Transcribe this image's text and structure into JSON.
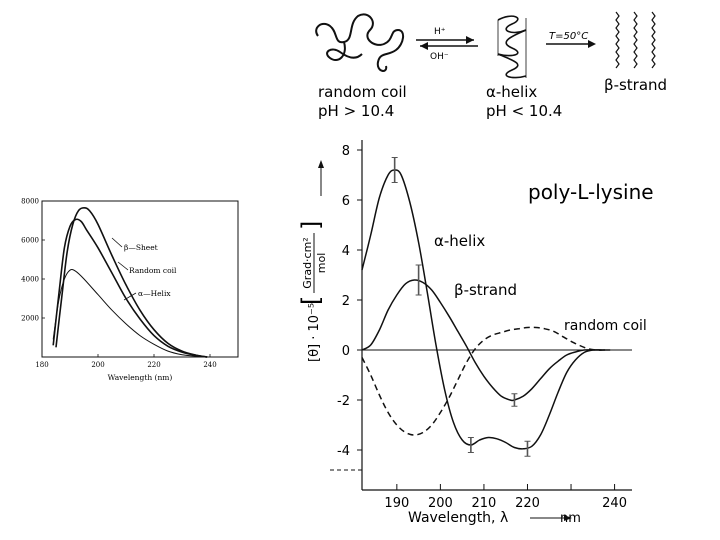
{
  "header": {
    "equilibrium_forward": "H⁺",
    "equilibrium_back": "OH⁻",
    "temp_label": "T=50°C",
    "states": [
      {
        "label": "random coil",
        "condition": "pH > 10.4"
      },
      {
        "label": "α-helix",
        "condition": "pH < 10.4"
      },
      {
        "label": "β-strand",
        "condition": ""
      }
    ]
  },
  "chart_data": [
    {
      "type": "line",
      "title": "",
      "xlabel": "Wavelength (nm)",
      "ylabel": "",
      "xlim": [
        180,
        250
      ],
      "ylim": [
        0,
        8000
      ],
      "x_ticks": [
        180,
        200,
        220,
        240
      ],
      "y_ticks": [
        2000,
        4000,
        6000,
        8000
      ],
      "annotations": [
        "β—Sheet",
        "Random coil",
        "α—Helix"
      ],
      "series": [
        {
          "name": "β—Sheet",
          "x": [
            185,
            187,
            189,
            191,
            193,
            195,
            197,
            200,
            205,
            210,
            215,
            220,
            225,
            230,
            235,
            239
          ],
          "y": [
            500,
            3000,
            5400,
            6800,
            7500,
            7650,
            7500,
            6800,
            5200,
            3700,
            2400,
            1400,
            700,
            300,
            100,
            0
          ]
        },
        {
          "name": "Random coil",
          "x": [
            184,
            186,
            188,
            190,
            192,
            194,
            196,
            200,
            205,
            210,
            215,
            220,
            225,
            230,
            235,
            239
          ],
          "y": [
            600,
            3200,
            5600,
            6700,
            7050,
            6950,
            6500,
            5600,
            4300,
            3000,
            1950,
            1100,
            550,
            250,
            80,
            0
          ]
        },
        {
          "name": "α—Helix",
          "x": [
            184,
            186,
            188,
            190,
            192,
            195,
            200,
            205,
            210,
            215,
            220,
            225,
            230,
            235,
            239
          ],
          "y": [
            900,
            2900,
            4000,
            4450,
            4400,
            4000,
            3200,
            2400,
            1700,
            1100,
            650,
            300,
            120,
            40,
            0
          ]
        }
      ]
    },
    {
      "type": "line",
      "title": "poly-L-lysine",
      "xlabel": "Wavelength, λ",
      "ylabel": "[θ] · 10⁻⁵",
      "ylabel_units": [
        "Grad·cm²",
        "mol"
      ],
      "x_unit": "nm",
      "xlim": [
        182,
        244
      ],
      "ylim": [
        -4.8,
        8.4
      ],
      "x_ticks": [
        190,
        200,
        210,
        220,
        230,
        240
      ],
      "x_tick_labels": [
        "190",
        "200",
        "210",
        "220",
        "",
        "240"
      ],
      "y_ticks": [
        8,
        6,
        4,
        2,
        0,
        -2,
        -4
      ],
      "series": [
        {
          "name": "α-helix",
          "style": "solid",
          "x": [
            182,
            184,
            186,
            188,
            189.5,
            191,
            193,
            195,
            197,
            199,
            201,
            203,
            205,
            207,
            209,
            211,
            213,
            215,
            217,
            219,
            221,
            223,
            225,
            227,
            229,
            231,
            233,
            235,
            237,
            239
          ],
          "y": [
            3.2,
            4.6,
            6.1,
            7.0,
            7.2,
            7.0,
            5.9,
            4.3,
            2.3,
            0.2,
            -1.6,
            -2.9,
            -3.6,
            -3.8,
            -3.6,
            -3.5,
            -3.55,
            -3.7,
            -3.9,
            -3.95,
            -3.85,
            -3.4,
            -2.6,
            -1.7,
            -0.9,
            -0.4,
            -0.1,
            0,
            0,
            0
          ],
          "error_bars": [
            {
              "x": 189.5,
              "y": 7.2,
              "err": 0.5
            },
            {
              "x": 207,
              "y": -3.8,
              "err": 0.3
            },
            {
              "x": 220,
              "y": -3.95,
              "err": 0.3
            }
          ]
        },
        {
          "name": "β-strand",
          "style": "solid",
          "x": [
            182,
            184,
            186,
            188,
            190,
            192,
            194,
            196,
            198,
            200,
            202,
            204,
            206,
            208,
            210,
            212,
            214,
            216,
            217,
            219,
            221,
            223,
            225,
            227,
            229,
            231,
            233,
            235,
            237
          ],
          "y": [
            0,
            0.2,
            0.8,
            1.6,
            2.2,
            2.65,
            2.8,
            2.7,
            2.4,
            1.9,
            1.35,
            0.75,
            0.15,
            -0.5,
            -1.05,
            -1.5,
            -1.85,
            -2.0,
            -2.0,
            -1.85,
            -1.55,
            -1.15,
            -0.75,
            -0.45,
            -0.2,
            -0.08,
            0,
            0,
            0
          ],
          "error_bars": [
            {
              "x": 195,
              "y": 2.8,
              "err": 0.6
            },
            {
              "x": 217,
              "y": -2.0,
              "err": 0.25
            }
          ]
        },
        {
          "name": "random coil",
          "style": "dashed",
          "x": [
            182,
            184,
            186,
            188,
            190,
            192,
            194,
            196,
            198,
            200,
            202,
            204,
            206,
            208,
            210,
            212,
            214,
            216,
            218,
            220,
            222,
            224,
            226,
            228,
            230,
            232,
            234,
            236,
            238
          ],
          "y": [
            -0.3,
            -1.0,
            -1.8,
            -2.5,
            -3.0,
            -3.3,
            -3.4,
            -3.3,
            -3.0,
            -2.5,
            -1.9,
            -1.2,
            -0.5,
            0.05,
            0.4,
            0.6,
            0.7,
            0.8,
            0.85,
            0.9,
            0.9,
            0.85,
            0.75,
            0.55,
            0.35,
            0.18,
            0.05,
            0,
            0
          ]
        }
      ]
    }
  ]
}
